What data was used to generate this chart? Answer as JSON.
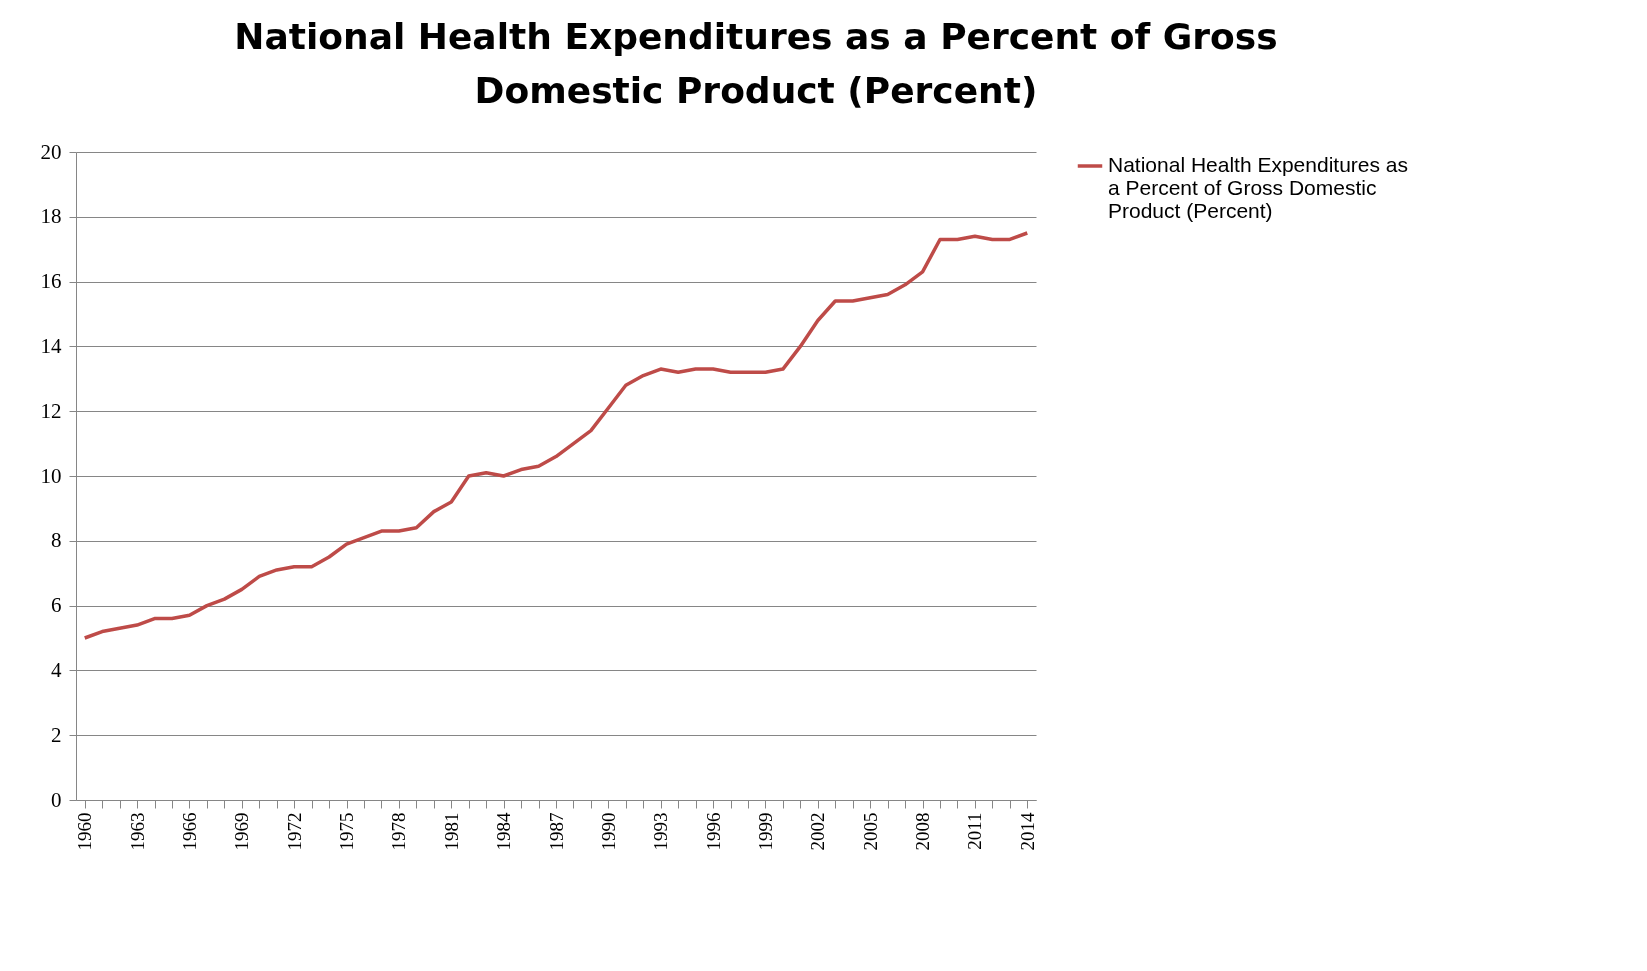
{
  "chart_data": {
    "type": "line",
    "title": "National Health Expenditures as a Percent of Gross Domestic Product (Percent)",
    "categories": [
      "1960",
      null,
      null,
      "1963",
      null,
      null,
      "1966",
      null,
      null,
      "1969",
      null,
      null,
      "1972",
      null,
      null,
      "1975",
      null,
      null,
      "1978",
      null,
      null,
      "1981",
      null,
      null,
      "1984",
      null,
      null,
      "1987",
      null,
      null,
      "1990",
      null,
      null,
      "1993",
      null,
      null,
      "1996",
      null,
      null,
      "1999",
      null,
      null,
      "2002",
      null,
      null,
      "2005",
      null,
      null,
      "2008",
      null,
      null,
      "2011",
      null,
      null,
      "2014"
    ],
    "series": [
      {
        "name": "National Health Expenditures as a Percent of Gross Domestic Product (Percent)",
        "color": "#be4b48",
        "values": [
          5.0,
          5.2,
          5.3,
          5.4,
          5.6,
          5.6,
          5.7,
          6.0,
          6.2,
          6.5,
          6.9,
          7.1,
          7.2,
          7.2,
          7.5,
          7.9,
          8.1,
          8.3,
          8.3,
          8.4,
          8.9,
          9.2,
          10.0,
          10.1,
          10.0,
          10.2,
          10.3,
          10.6,
          11.0,
          11.4,
          12.1,
          12.8,
          13.1,
          13.3,
          13.2,
          13.3,
          13.3,
          13.2,
          13.2,
          13.2,
          13.3,
          14.0,
          14.8,
          15.4,
          15.4,
          15.5,
          15.6,
          15.9,
          16.3,
          17.3,
          17.3,
          17.4,
          17.3,
          17.3,
          17.5
        ]
      }
    ],
    "ylim": [
      0,
      20
    ],
    "yticks": [
      0,
      2,
      4,
      6,
      8,
      10,
      12,
      14,
      16,
      18,
      20
    ],
    "grid": "y",
    "legend": "right",
    "marker": "none",
    "line_style": "solid"
  }
}
